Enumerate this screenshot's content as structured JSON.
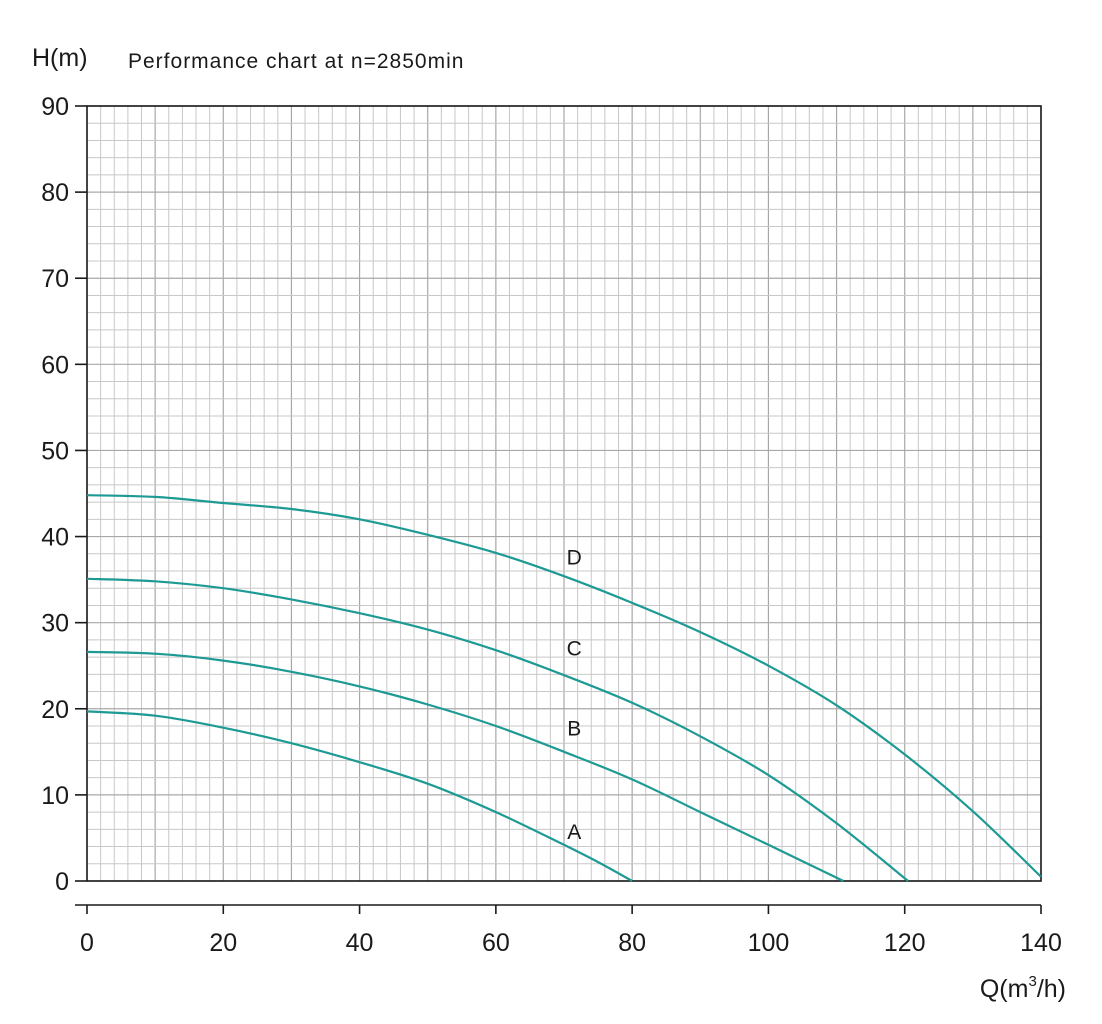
{
  "chart_data": {
    "type": "line",
    "title": "Performance chart at n=2850min",
    "ylabel": "H(m)",
    "xlabel_parts": [
      "Q(m",
      "3",
      "/h)"
    ],
    "xlim": [
      0,
      140
    ],
    "ylim": [
      0,
      90
    ],
    "x_ticks": [
      0,
      20,
      40,
      60,
      80,
      100,
      120,
      140
    ],
    "y_ticks": [
      0,
      10,
      20,
      30,
      40,
      50,
      60,
      70,
      80,
      90
    ],
    "grid": true,
    "line_color": "#1e9a94",
    "series": [
      {
        "name": "A",
        "label_at": [
          71.5,
          5.8
        ],
        "x": [
          0,
          10,
          20,
          30,
          40,
          50,
          60,
          70,
          75,
          80
        ],
        "y": [
          19.7,
          19.2,
          17.8,
          16.0,
          13.8,
          11.3,
          8.0,
          4.2,
          2.2,
          0
        ]
      },
      {
        "name": "B",
        "label_at": [
          71.5,
          17.8
        ],
        "x": [
          0,
          10,
          20,
          30,
          40,
          50,
          60,
          70,
          80,
          90,
          100,
          111
        ],
        "y": [
          26.6,
          26.4,
          25.6,
          24.3,
          22.6,
          20.5,
          18.0,
          15.0,
          11.8,
          8.0,
          4.2,
          0
        ]
      },
      {
        "name": "C",
        "label_at": [
          71.5,
          27.1
        ],
        "x": [
          0,
          10,
          20,
          30,
          40,
          50,
          60,
          70,
          80,
          90,
          100,
          110,
          120.5
        ],
        "y": [
          35.1,
          34.8,
          34.0,
          32.7,
          31.1,
          29.2,
          26.8,
          23.9,
          20.7,
          16.8,
          12.3,
          6.7,
          0
        ]
      },
      {
        "name": "D",
        "label_at": [
          71.5,
          37.7
        ],
        "x": [
          0,
          10,
          20,
          30,
          40,
          50,
          60,
          70,
          80,
          90,
          100,
          110,
          120,
          130,
          140
        ],
        "y": [
          44.8,
          44.6,
          43.9,
          43.2,
          42.0,
          40.2,
          38.1,
          35.4,
          32.3,
          28.9,
          25.0,
          20.4,
          14.7,
          8.1,
          0.5
        ]
      }
    ]
  }
}
